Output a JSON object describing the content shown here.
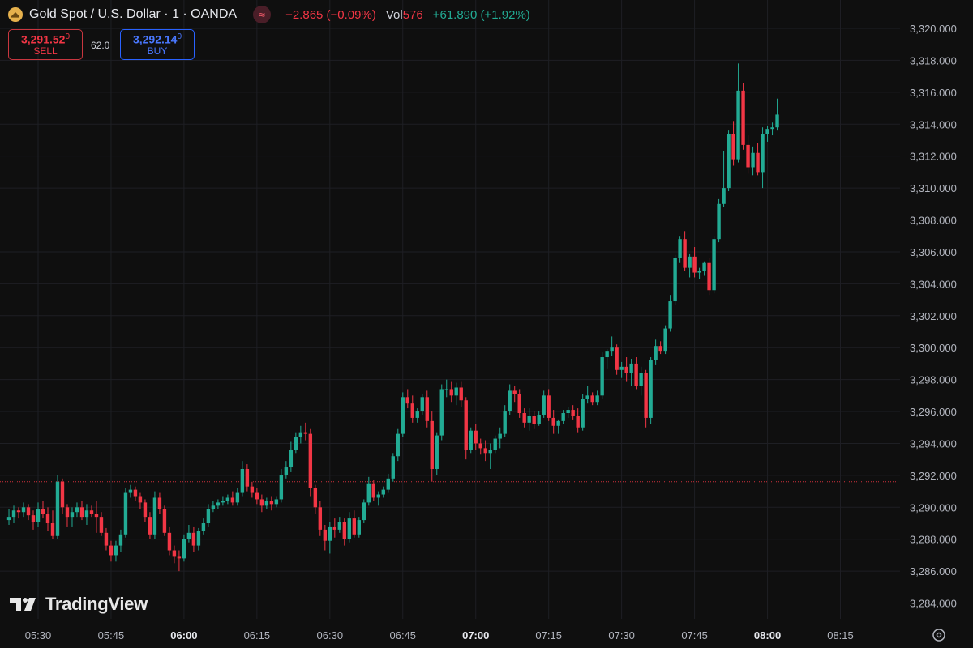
{
  "header": {
    "title": "Gold Spot / U.S. Dollar · 1 · OANDA",
    "change": "−2.865 (−0.09%)",
    "vol_label": "Vol",
    "vol_value": "576",
    "change_pos": "+61.890 (+1.92%)",
    "icons": {
      "logo": "gold-logo-icon",
      "wave": "wave-icon"
    }
  },
  "trade": {
    "sell_price": "3,291.52",
    "sell_price_sup": "0",
    "sell_label": "SELL",
    "spread": "62.0",
    "buy_price": "3,292.14",
    "buy_price_sup": "0",
    "buy_label": "BUY"
  },
  "watermark": "TradingView",
  "colors": {
    "up": "#22ab94",
    "down": "#f23645",
    "background": "#0f0f0f",
    "grid": "#1e1f24"
  },
  "chart_data": {
    "type": "candlestick",
    "interval_minutes": 1,
    "ylim": [
      3283,
      3321
    ],
    "y_ticks": [
      "3,284.000",
      "3,286.000",
      "3,288.000",
      "3,290.000",
      "3,292.000",
      "3,294.000",
      "3,296.000",
      "3,298.000",
      "3,300.000",
      "3,302.000",
      "3,304.000",
      "3,306.000",
      "3,308.000",
      "3,310.000",
      "3,312.000",
      "3,314.000",
      "3,316.000",
      "3,318.000",
      "3,320.000"
    ],
    "x_ticks": [
      {
        "label": "05:30",
        "minute": 0,
        "bold": false
      },
      {
        "label": "05:45",
        "minute": 15,
        "bold": false
      },
      {
        "label": "06:00",
        "minute": 30,
        "bold": true
      },
      {
        "label": "06:15",
        "minute": 45,
        "bold": false
      },
      {
        "label": "06:30",
        "minute": 60,
        "bold": false
      },
      {
        "label": "06:45",
        "minute": 75,
        "bold": false
      },
      {
        "label": "07:00",
        "minute": 90,
        "bold": true
      },
      {
        "label": "07:15",
        "minute": 105,
        "bold": false
      },
      {
        "label": "07:30",
        "minute": 120,
        "bold": false
      },
      {
        "label": "07:45",
        "minute": 135,
        "bold": false
      },
      {
        "label": "08:00",
        "minute": 150,
        "bold": true
      },
      {
        "label": "08:15",
        "minute": 165,
        "bold": false
      }
    ],
    "price_line": 3291.6,
    "start_minute": -6,
    "ohlc": [
      [
        3289.2,
        3289.9,
        3288.9,
        3289.4
      ],
      [
        3289.4,
        3290.1,
        3289.0,
        3289.8
      ],
      [
        3289.8,
        3290.0,
        3289.3,
        3289.7
      ],
      [
        3289.7,
        3290.3,
        3289.4,
        3290.0
      ],
      [
        3290.0,
        3290.2,
        3289.2,
        3289.5
      ],
      [
        3289.5,
        3289.8,
        3288.6,
        3289.1
      ],
      [
        3289.1,
        3290.3,
        3288.8,
        3289.9
      ],
      [
        3289.9,
        3290.4,
        3289.3,
        3289.6
      ],
      [
        3289.6,
        3290.0,
        3288.5,
        3289.0
      ],
      [
        3289.0,
        3289.8,
        3288.0,
        3288.2
      ],
      [
        3288.2,
        3292.0,
        3288.0,
        3291.6
      ],
      [
        3291.6,
        3291.8,
        3289.6,
        3290.0
      ],
      [
        3290.0,
        3290.2,
        3288.8,
        3289.4
      ],
      [
        3289.4,
        3290.0,
        3288.8,
        3289.7
      ],
      [
        3289.7,
        3290.3,
        3289.4,
        3290.0
      ],
      [
        3290.0,
        3290.4,
        3289.2,
        3289.4
      ],
      [
        3289.4,
        3290.2,
        3288.9,
        3289.8
      ],
      [
        3289.8,
        3290.1,
        3289.4,
        3289.6
      ],
      [
        3289.6,
        3290.4,
        3288.4,
        3289.4
      ],
      [
        3289.4,
        3289.7,
        3288.2,
        3288.4
      ],
      [
        3288.4,
        3288.7,
        3287.3,
        3287.6
      ],
      [
        3287.6,
        3287.9,
        3286.6,
        3287.0
      ],
      [
        3287.0,
        3287.9,
        3286.6,
        3287.6
      ],
      [
        3287.6,
        3288.6,
        3287.2,
        3288.3
      ],
      [
        3288.3,
        3291.2,
        3288.1,
        3290.9
      ],
      [
        3290.9,
        3291.4,
        3290.6,
        3291.1
      ],
      [
        3291.1,
        3291.3,
        3290.4,
        3290.7
      ],
      [
        3290.7,
        3290.9,
        3289.9,
        3290.3
      ],
      [
        3290.3,
        3290.5,
        3289.1,
        3289.4
      ],
      [
        3289.4,
        3289.7,
        3288.0,
        3288.3
      ],
      [
        3288.3,
        3291.0,
        3288.0,
        3290.6
      ],
      [
        3290.6,
        3290.9,
        3289.6,
        3289.9
      ],
      [
        3289.9,
        3290.1,
        3288.2,
        3288.4
      ],
      [
        3288.4,
        3288.8,
        3287.0,
        3287.3
      ],
      [
        3287.3,
        3287.6,
        3286.5,
        3286.9
      ],
      [
        3286.9,
        3287.3,
        3286.0,
        3286.8
      ],
      [
        3286.8,
        3288.3,
        3286.6,
        3288.0
      ],
      [
        3288.0,
        3288.9,
        3287.8,
        3288.4
      ],
      [
        3288.4,
        3288.8,
        3287.2,
        3287.6
      ],
      [
        3287.6,
        3288.7,
        3287.3,
        3288.5
      ],
      [
        3288.5,
        3289.3,
        3288.3,
        3289.0
      ],
      [
        3289.0,
        3290.2,
        3288.8,
        3289.9
      ],
      [
        3289.9,
        3290.4,
        3289.7,
        3290.1
      ],
      [
        3290.1,
        3290.5,
        3289.9,
        3290.3
      ],
      [
        3290.3,
        3290.7,
        3290.1,
        3290.4
      ],
      [
        3290.4,
        3290.8,
        3290.2,
        3290.6
      ],
      [
        3290.6,
        3291.0,
        3290.1,
        3290.3
      ],
      [
        3290.3,
        3291.2,
        3290.1,
        3290.9
      ],
      [
        3290.9,
        3292.9,
        3290.7,
        3292.4
      ],
      [
        3292.4,
        3292.7,
        3291.0,
        3291.3
      ],
      [
        3291.3,
        3291.6,
        3290.6,
        3290.9
      ],
      [
        3290.9,
        3291.2,
        3290.2,
        3290.5
      ],
      [
        3290.5,
        3290.8,
        3289.7,
        3290.1
      ],
      [
        3290.1,
        3290.6,
        3289.9,
        3290.4
      ],
      [
        3290.4,
        3290.7,
        3289.8,
        3290.2
      ],
      [
        3290.2,
        3290.7,
        3290.0,
        3290.5
      ],
      [
        3290.5,
        3292.4,
        3290.3,
        3292.0
      ],
      [
        3292.0,
        3292.9,
        3291.8,
        3292.5
      ],
      [
        3292.5,
        3294.1,
        3292.2,
        3293.6
      ],
      [
        3293.6,
        3294.7,
        3293.4,
        3294.4
      ],
      [
        3294.4,
        3295.1,
        3294.0,
        3294.7
      ],
      [
        3294.7,
        3295.3,
        3294.2,
        3294.6
      ],
      [
        3294.6,
        3294.9,
        3290.7,
        3291.2
      ],
      [
        3291.2,
        3291.4,
        3289.6,
        3290.0
      ],
      [
        3290.0,
        3290.4,
        3288.2,
        3288.6
      ],
      [
        3288.6,
        3288.9,
        3287.3,
        3287.9
      ],
      [
        3287.9,
        3289.1,
        3287.1,
        3288.8
      ],
      [
        3288.8,
        3289.3,
        3288.1,
        3288.6
      ],
      [
        3288.6,
        3289.4,
        3288.4,
        3289.1
      ],
      [
        3289.1,
        3289.3,
        3287.6,
        3288.0
      ],
      [
        3288.0,
        3289.7,
        3287.8,
        3289.3
      ],
      [
        3289.3,
        3289.8,
        3288.1,
        3288.3
      ],
      [
        3288.3,
        3289.4,
        3288.1,
        3289.2
      ],
      [
        3289.2,
        3290.5,
        3289.0,
        3290.3
      ],
      [
        3290.3,
        3291.9,
        3290.1,
        3291.5
      ],
      [
        3291.5,
        3291.7,
        3290.4,
        3290.6
      ],
      [
        3290.6,
        3291.0,
        3290.1,
        3290.8
      ],
      [
        3290.8,
        3291.3,
        3290.6,
        3291.1
      ],
      [
        3291.1,
        3292.1,
        3290.9,
        3291.8
      ],
      [
        3291.8,
        3293.4,
        3291.6,
        3293.2
      ],
      [
        3293.2,
        3294.9,
        3292.9,
        3294.6
      ],
      [
        3294.6,
        3297.2,
        3294.4,
        3296.9
      ],
      [
        3296.9,
        3297.4,
        3296.2,
        3296.5
      ],
      [
        3296.5,
        3297.0,
        3295.3,
        3295.6
      ],
      [
        3295.6,
        3296.2,
        3295.3,
        3296.0
      ],
      [
        3296.0,
        3297.1,
        3295.8,
        3296.9
      ],
      [
        3296.9,
        3297.3,
        3295.0,
        3295.4
      ],
      [
        3295.4,
        3296.0,
        3291.6,
        3292.4
      ],
      [
        3292.4,
        3294.7,
        3292.0,
        3294.5
      ],
      [
        3294.5,
        3297.7,
        3294.2,
        3297.4
      ],
      [
        3297.4,
        3298.0,
        3296.9,
        3297.4
      ],
      [
        3297.4,
        3297.9,
        3296.6,
        3297.0
      ],
      [
        3297.0,
        3297.8,
        3296.4,
        3297.5
      ],
      [
        3297.5,
        3297.9,
        3296.3,
        3296.7
      ],
      [
        3296.7,
        3296.9,
        3293.0,
        3293.6
      ],
      [
        3293.6,
        3295.0,
        3293.4,
        3294.8
      ],
      [
        3294.8,
        3295.2,
        3293.6,
        3294.0
      ],
      [
        3294.0,
        3294.3,
        3293.3,
        3293.7
      ],
      [
        3293.7,
        3294.2,
        3292.9,
        3293.4
      ],
      [
        3293.4,
        3294.0,
        3292.4,
        3293.6
      ],
      [
        3293.6,
        3294.5,
        3293.4,
        3294.3
      ],
      [
        3294.3,
        3295.0,
        3293.7,
        3294.6
      ],
      [
        3294.6,
        3296.4,
        3294.4,
        3296.0
      ],
      [
        3296.0,
        3297.7,
        3295.8,
        3297.3
      ],
      [
        3297.3,
        3297.6,
        3296.6,
        3297.1
      ],
      [
        3297.1,
        3297.4,
        3295.6,
        3295.9
      ],
      [
        3295.9,
        3296.2,
        3295.0,
        3295.3
      ],
      [
        3295.3,
        3296.2,
        3294.8,
        3295.7
      ],
      [
        3295.7,
        3296.0,
        3294.9,
        3295.2
      ],
      [
        3295.2,
        3296.0,
        3295.1,
        3295.8
      ],
      [
        3295.8,
        3297.3,
        3295.6,
        3297.0
      ],
      [
        3297.0,
        3297.4,
        3295.4,
        3295.6
      ],
      [
        3295.6,
        3296.1,
        3294.6,
        3295.1
      ],
      [
        3295.1,
        3295.5,
        3294.6,
        3295.4
      ],
      [
        3295.4,
        3296.1,
        3295.2,
        3295.9
      ],
      [
        3295.9,
        3296.3,
        3295.6,
        3296.1
      ],
      [
        3296.1,
        3296.4,
        3295.5,
        3295.7
      ],
      [
        3295.7,
        3296.2,
        3294.7,
        3295.0
      ],
      [
        3295.0,
        3297.1,
        3294.8,
        3296.8
      ],
      [
        3296.8,
        3297.6,
        3296.5,
        3297.0
      ],
      [
        3297.0,
        3297.2,
        3296.4,
        3296.6
      ],
      [
        3296.6,
        3297.3,
        3296.4,
        3297.0
      ],
      [
        3297.0,
        3299.7,
        3296.8,
        3299.4
      ],
      [
        3299.4,
        3299.9,
        3298.7,
        3299.8
      ],
      [
        3299.8,
        3300.7,
        3299.5,
        3300.0
      ],
      [
        3300.0,
        3300.2,
        3298.3,
        3298.6
      ],
      [
        3298.6,
        3299.1,
        3298.1,
        3298.8
      ],
      [
        3298.8,
        3299.4,
        3297.9,
        3298.4
      ],
      [
        3298.4,
        3299.3,
        3297.6,
        3299.0
      ],
      [
        3299.0,
        3299.4,
        3297.4,
        3297.6
      ],
      [
        3297.6,
        3298.8,
        3297.0,
        3298.4
      ],
      [
        3298.4,
        3298.6,
        3295.0,
        3295.6
      ],
      [
        3295.6,
        3299.4,
        3295.2,
        3299.2
      ],
      [
        3299.2,
        3300.5,
        3298.9,
        3300.1
      ],
      [
        3300.1,
        3300.4,
        3299.6,
        3299.8
      ],
      [
        3299.8,
        3301.4,
        3299.6,
        3301.2
      ],
      [
        3301.2,
        3303.3,
        3301.0,
        3302.9
      ],
      [
        3302.9,
        3305.8,
        3302.7,
        3305.6
      ],
      [
        3305.6,
        3307.0,
        3305.3,
        3306.8
      ],
      [
        3306.8,
        3307.3,
        3304.8,
        3305.0
      ],
      [
        3305.0,
        3305.9,
        3304.4,
        3305.7
      ],
      [
        3305.7,
        3306.3,
        3304.4,
        3304.7
      ],
      [
        3304.7,
        3305.0,
        3304.3,
        3304.8
      ],
      [
        3304.8,
        3305.4,
        3304.5,
        3305.3
      ],
      [
        3305.3,
        3305.6,
        3303.3,
        3303.6
      ],
      [
        3303.6,
        3307.0,
        3303.4,
        3306.8
      ],
      [
        3306.8,
        3309.3,
        3306.6,
        3309.0
      ],
      [
        3309.0,
        3312.3,
        3308.8,
        3310.0
      ],
      [
        3310.0,
        3313.6,
        3309.8,
        3313.4
      ],
      [
        3313.4,
        3314.2,
        3311.4,
        3311.8
      ],
      [
        3311.8,
        3317.8,
        3311.6,
        3316.1
      ],
      [
        3316.1,
        3316.6,
        3312.4,
        3312.7
      ],
      [
        3312.7,
        3313.3,
        3310.9,
        3311.3
      ],
      [
        3311.3,
        3312.6,
        3310.8,
        3312.2
      ],
      [
        3312.2,
        3312.8,
        3310.8,
        3311.0
      ],
      [
        3311.0,
        3313.8,
        3310.0,
        3313.4
      ],
      [
        3313.4,
        3313.9,
        3312.9,
        3313.7
      ],
      [
        3313.7,
        3314.1,
        3313.3,
        3313.8
      ],
      [
        3313.8,
        3315.6,
        3313.6,
        3314.6
      ]
    ]
  }
}
